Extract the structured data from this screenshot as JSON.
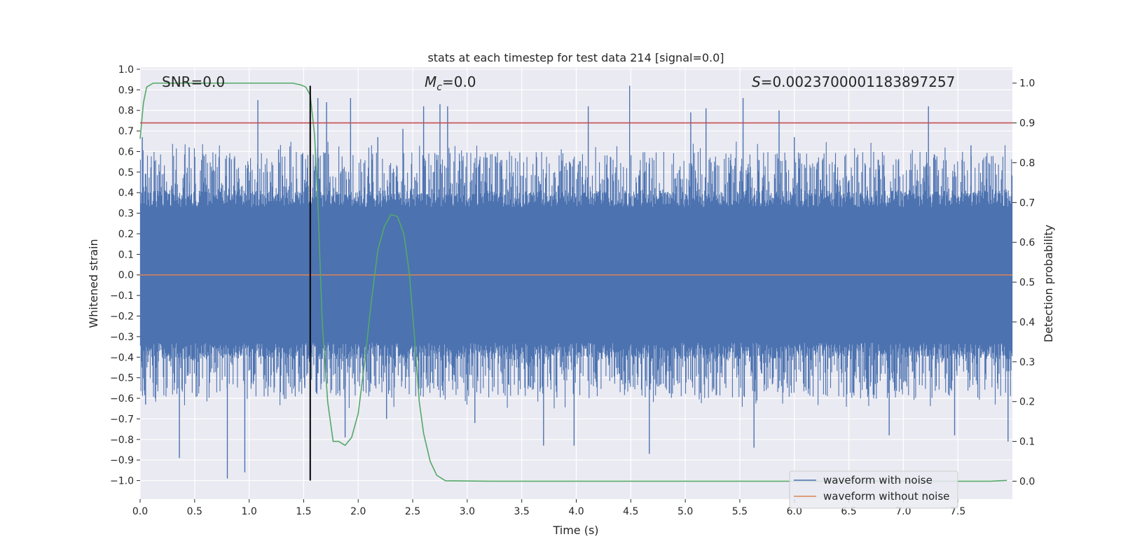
{
  "chart_data": {
    "type": "line",
    "title": "stats at each timestep for test data 214 [signal=0.0]",
    "xlabel": "Time (s)",
    "ylabel": "Whitened strain",
    "y2label": "Detection probability",
    "xlim": [
      0.0,
      8.0
    ],
    "ylim": [
      -1.09,
      1.01
    ],
    "y2lim": [
      -0.045,
      1.04
    ],
    "x_ticks": [
      0.0,
      0.5,
      1.0,
      1.5,
      2.0,
      2.5,
      3.0,
      3.5,
      4.0,
      4.5,
      5.0,
      5.5,
      6.0,
      6.5,
      7.0,
      7.5
    ],
    "x_tick_labels": [
      "0.0",
      "0.5",
      "1.0",
      "1.5",
      "2.0",
      "2.5",
      "3.0",
      "3.5",
      "4.0",
      "4.5",
      "5.0",
      "5.5",
      "6.0",
      "6.5",
      "7.0",
      "7.5"
    ],
    "y_ticks": [
      1.0,
      0.9,
      0.8,
      0.7,
      0.6,
      0.5,
      0.4,
      0.3,
      0.2,
      0.1,
      0.0,
      -0.1,
      -0.2,
      -0.3,
      -0.4,
      -0.5,
      -0.6,
      -0.7,
      -0.8,
      -0.9,
      -1.0
    ],
    "y_tick_labels": [
      "1.0",
      "0.9",
      "0.8",
      "0.7",
      "0.6",
      "0.5",
      "0.4",
      "0.3",
      "0.2",
      "0.1",
      "0.0",
      "−0.1",
      "−0.2",
      "−0.3",
      "−0.4",
      "−0.5",
      "−0.6",
      "−0.7",
      "−0.8",
      "−0.9",
      "−1.0"
    ],
    "y2_ticks": [
      1.0,
      0.9,
      0.8,
      0.7,
      0.6,
      0.5,
      0.4,
      0.3,
      0.2,
      0.1,
      0.0
    ],
    "y2_tick_labels": [
      "1.0",
      "0.9",
      "0.8",
      "0.7",
      "0.6",
      "0.5",
      "0.4",
      "0.3",
      "0.2",
      "0.1",
      "0.0"
    ],
    "grid": true,
    "legend_position": "bottom-right",
    "annotations": {
      "snr": "SNR=0.0",
      "mc_symbol": "M",
      "mc_sub": "c",
      "mc_value": "=0.0",
      "s_symbol": "S",
      "s_value": "=0.0023700001183897257"
    },
    "series": [
      {
        "name": "waveform with noise",
        "color": "#4c72b0",
        "axis": "left",
        "kind": "noise",
        "amplitude_core": 0.33,
        "spikes": [
          [
            0.02,
            0.67
          ],
          [
            0.05,
            -0.63
          ],
          [
            0.36,
            -0.89
          ],
          [
            0.45,
            0.62
          ],
          [
            0.8,
            -0.99
          ],
          [
            0.96,
            -0.96
          ],
          [
            1.08,
            0.85
          ],
          [
            1.27,
            0.61
          ],
          [
            1.51,
            -0.55
          ],
          [
            1.63,
            0.86
          ],
          [
            1.71,
            0.84
          ],
          [
            1.88,
            -0.79
          ],
          [
            1.93,
            0.86
          ],
          [
            2.18,
            0.67
          ],
          [
            2.26,
            -0.7
          ],
          [
            2.41,
            0.71
          ],
          [
            2.6,
            0.82
          ],
          [
            2.75,
            0.83
          ],
          [
            2.82,
            0.82
          ],
          [
            3.07,
            -0.72
          ],
          [
            3.7,
            -0.83
          ],
          [
            3.98,
            -0.83
          ],
          [
            4.11,
            0.82
          ],
          [
            4.49,
            0.92
          ],
          [
            4.67,
            -0.87
          ],
          [
            5.05,
            0.79
          ],
          [
            5.19,
            0.81
          ],
          [
            5.53,
            0.86
          ],
          [
            5.63,
            -0.84
          ],
          [
            5.86,
            0.8
          ],
          [
            6.0,
            0.67
          ],
          [
            6.87,
            -0.78
          ],
          [
            7.23,
            0.82
          ],
          [
            7.47,
            -0.78
          ],
          [
            7.62,
            0.63
          ],
          [
            7.96,
            -0.81
          ]
        ]
      },
      {
        "name": "waveform without noise",
        "color": "#dd8452",
        "axis": "left",
        "x": [
          0.0,
          8.0
        ],
        "y": [
          0.0,
          0.0
        ]
      },
      {
        "name": "",
        "color": "#55a868",
        "axis": "right",
        "x": [
          0.0,
          0.03,
          0.06,
          0.12,
          0.2,
          0.4,
          0.8,
          1.2,
          1.4,
          1.48,
          1.52,
          1.56,
          1.6,
          1.63,
          1.67,
          1.72,
          1.77,
          1.82,
          1.88,
          1.94,
          2.0,
          2.06,
          2.12,
          2.18,
          2.24,
          2.3,
          2.36,
          2.42,
          2.47,
          2.52,
          2.56,
          2.6,
          2.66,
          2.72,
          2.8,
          3.2,
          4.0,
          5.0,
          6.0,
          7.0,
          7.8,
          7.95
        ],
        "y": [
          0.86,
          0.95,
          0.99,
          1.0,
          1.0,
          1.0,
          1.0,
          1.0,
          1.0,
          0.995,
          0.99,
          0.97,
          0.87,
          0.7,
          0.4,
          0.2,
          0.1,
          0.1,
          0.09,
          0.11,
          0.17,
          0.3,
          0.45,
          0.58,
          0.64,
          0.67,
          0.665,
          0.62,
          0.52,
          0.35,
          0.2,
          0.12,
          0.05,
          0.015,
          0.001,
          0.0,
          0.0,
          0.0,
          0.0,
          0.0,
          0.0,
          0.002
        ]
      },
      {
        "name": "",
        "color": "#c44e52",
        "axis": "right",
        "x": [
          0.0,
          8.0
        ],
        "y": [
          0.9,
          0.9
        ]
      },
      {
        "name": "",
        "color": "#000000",
        "axis": "left",
        "x": [
          1.56,
          1.56
        ],
        "y": [
          -1.0,
          0.92
        ]
      }
    ]
  }
}
